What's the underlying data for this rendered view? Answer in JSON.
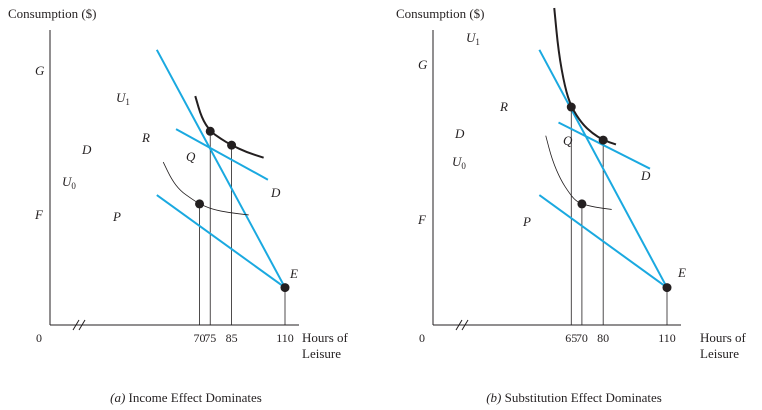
{
  "chart_data": [
    {
      "type": "line",
      "panel": "a",
      "caption_prefix": "(a)",
      "caption": "Income Effect Dominates",
      "ylabel": "Consumption ($)",
      "xlabel_line1": "Hours of",
      "xlabel_line2": "Leisure",
      "origin_label": "0",
      "xticks": [
        {
          "value": 70,
          "label": "70"
        },
        {
          "value": 75,
          "label": "75"
        },
        {
          "value": 85,
          "label": "85"
        },
        {
          "value": 110,
          "label": "110"
        }
      ],
      "y_labels": {
        "G": "G",
        "F": "F"
      },
      "budget_lines": [
        {
          "name": "GE",
          "x": [
            50,
            110
          ],
          "y": [
            125,
            17
          ]
        },
        {
          "name": "FE",
          "x": [
            50,
            110
          ],
          "y": [
            59,
            17
          ]
        },
        {
          "name": "DD",
          "x": [
            59,
            102
          ],
          "y": [
            89,
            66
          ]
        }
      ],
      "indifference_curves": [
        {
          "label": "U",
          "sub": "1",
          "x": [
            68,
            71,
            75,
            80,
            85,
            92,
            100
          ],
          "y": [
            104,
            94,
            88,
            84.5,
            81.7,
            78.5,
            76
          ]
        },
        {
          "label": "U",
          "sub": "0",
          "x": [
            53,
            57,
            61,
            66,
            70,
            76,
            84,
            93
          ],
          "y": [
            74,
            66,
            61,
            57.5,
            55,
            52.5,
            51,
            50
          ]
        }
      ],
      "points": [
        {
          "label": "P",
          "x": 70,
          "y": 55
        },
        {
          "label": "R",
          "x": 75,
          "y": 88
        },
        {
          "label": "Q",
          "x": 85,
          "y": 81.7
        },
        {
          "label": "E",
          "x": 110,
          "y": 17
        }
      ],
      "curve_labels": {
        "D_left": "D",
        "D_right": "D"
      }
    },
    {
      "type": "line",
      "panel": "b",
      "caption_prefix": "(b)",
      "caption": "Substitution Effect Dominates",
      "ylabel": "Consumption ($)",
      "xlabel_line1": "Hours of",
      "xlabel_line2": "Leisure",
      "origin_label": "0",
      "xticks": [
        {
          "value": 65,
          "label": "65"
        },
        {
          "value": 70,
          "label": "70"
        },
        {
          "value": 80,
          "label": "80"
        },
        {
          "value": 110,
          "label": "110"
        }
      ],
      "y_labels": {
        "G": "G",
        "F": "F"
      },
      "budget_lines": [
        {
          "name": "GE",
          "x": [
            50,
            110
          ],
          "y": [
            125,
            17
          ]
        },
        {
          "name": "FE",
          "x": [
            50,
            110
          ],
          "y": [
            59,
            17
          ]
        },
        {
          "name": "DD",
          "x": [
            59,
            102
          ],
          "y": [
            92,
            71
          ]
        }
      ],
      "indifference_curves": [
        {
          "label": "U",
          "sub": "1",
          "x": [
            57,
            59,
            62,
            65,
            70,
            75,
            80,
            86
          ],
          "y": [
            144,
            124,
            108,
            99,
            91.5,
            87,
            84,
            82
          ]
        },
        {
          "label": "U",
          "sub": "0",
          "x": [
            53,
            56,
            60,
            64,
            67,
            70,
            76,
            84
          ],
          "y": [
            86,
            75,
            66,
            60,
            56.5,
            55,
            53.5,
            52.5
          ]
        }
      ],
      "points": [
        {
          "label": "P",
          "x": 70,
          "y": 55
        },
        {
          "label": "R",
          "x": 65,
          "y": 99
        },
        {
          "label": "Q",
          "x": 80,
          "y": 84
        },
        {
          "label": "E",
          "x": 110,
          "y": 17
        }
      ],
      "curve_labels": {
        "D_left": "D",
        "D_right": "D"
      }
    }
  ]
}
